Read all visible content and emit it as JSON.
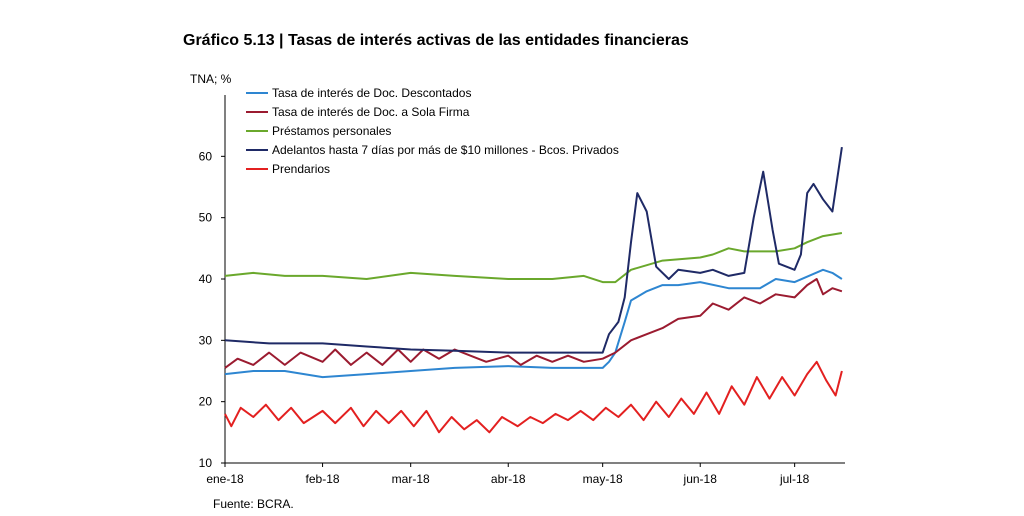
{
  "title": "Gráfico 5.13 | Tasas de interés activas de las entidades financieras",
  "unit_label": "TNA; %",
  "source": "Fuente: BCRA.",
  "chart_data": {
    "type": "line",
    "title": "Gráfico 5.13 | Tasas de interés activas de las entidades financieras",
    "xlabel": "",
    "ylabel": "TNA; %",
    "ylim": [
      10,
      70
    ],
    "yticks": [
      10,
      20,
      30,
      40,
      50,
      60
    ],
    "xticks": [
      "ene-18",
      "feb-18",
      "mar-18",
      "abr-18",
      "may-18",
      "jun-18",
      "jul-18"
    ],
    "x_range": [
      "2018-01-01",
      "2018-07-17"
    ],
    "grid": false,
    "legend_position": "top-left",
    "series": [
      {
        "name": "Tasa de interés de Doc. Descontados",
        "color": "#2e86d1",
        "points": [
          [
            "2018-01-01",
            24.5
          ],
          [
            "2018-01-10",
            25.0
          ],
          [
            "2018-01-20",
            25.0
          ],
          [
            "2018-02-01",
            24.0
          ],
          [
            "2018-02-15",
            24.5
          ],
          [
            "2018-03-01",
            25.0
          ],
          [
            "2018-03-15",
            25.5
          ],
          [
            "2018-04-01",
            25.8
          ],
          [
            "2018-04-15",
            25.5
          ],
          [
            "2018-05-01",
            25.5
          ],
          [
            "2018-05-03",
            26.5
          ],
          [
            "2018-05-05",
            28.0
          ],
          [
            "2018-05-08",
            33.0
          ],
          [
            "2018-05-10",
            36.5
          ],
          [
            "2018-05-15",
            38.0
          ],
          [
            "2018-05-20",
            39.0
          ],
          [
            "2018-05-25",
            39.0
          ],
          [
            "2018-06-01",
            39.5
          ],
          [
            "2018-06-10",
            38.5
          ],
          [
            "2018-06-20",
            38.5
          ],
          [
            "2018-06-25",
            40.0
          ],
          [
            "2018-07-01",
            39.5
          ],
          [
            "2018-07-10",
            41.5
          ],
          [
            "2018-07-13",
            41.0
          ],
          [
            "2018-07-16",
            40.0
          ]
        ]
      },
      {
        "name": "Tasa de interés de Doc. a Sola Firma",
        "color": "#9b1b30",
        "points": [
          [
            "2018-01-01",
            25.5
          ],
          [
            "2018-01-05",
            27.0
          ],
          [
            "2018-01-10",
            26.0
          ],
          [
            "2018-01-15",
            28.0
          ],
          [
            "2018-01-20",
            26.0
          ],
          [
            "2018-01-25",
            28.0
          ],
          [
            "2018-02-01",
            26.5
          ],
          [
            "2018-02-05",
            28.5
          ],
          [
            "2018-02-10",
            26.0
          ],
          [
            "2018-02-15",
            28.0
          ],
          [
            "2018-02-20",
            26.0
          ],
          [
            "2018-02-25",
            28.5
          ],
          [
            "2018-03-01",
            26.5
          ],
          [
            "2018-03-05",
            28.5
          ],
          [
            "2018-03-10",
            27.0
          ],
          [
            "2018-03-15",
            28.5
          ],
          [
            "2018-03-20",
            27.5
          ],
          [
            "2018-03-25",
            26.5
          ],
          [
            "2018-04-01",
            27.5
          ],
          [
            "2018-04-05",
            26.0
          ],
          [
            "2018-04-10",
            27.5
          ],
          [
            "2018-04-15",
            26.5
          ],
          [
            "2018-04-20",
            27.5
          ],
          [
            "2018-04-25",
            26.5
          ],
          [
            "2018-05-01",
            27.0
          ],
          [
            "2018-05-05",
            28.0
          ],
          [
            "2018-05-10",
            30.0
          ],
          [
            "2018-05-15",
            31.0
          ],
          [
            "2018-05-20",
            32.0
          ],
          [
            "2018-05-25",
            33.5
          ],
          [
            "2018-06-01",
            34.0
          ],
          [
            "2018-06-05",
            36.0
          ],
          [
            "2018-06-10",
            35.0
          ],
          [
            "2018-06-15",
            37.0
          ],
          [
            "2018-06-20",
            36.0
          ],
          [
            "2018-06-25",
            37.5
          ],
          [
            "2018-07-01",
            37.0
          ],
          [
            "2018-07-05",
            39.0
          ],
          [
            "2018-07-08",
            40.0
          ],
          [
            "2018-07-10",
            37.5
          ],
          [
            "2018-07-13",
            38.5
          ],
          [
            "2018-07-16",
            38.0
          ]
        ]
      },
      {
        "name": "Préstamos personales",
        "color": "#6aa82c",
        "points": [
          [
            "2018-01-01",
            40.5
          ],
          [
            "2018-01-10",
            41.0
          ],
          [
            "2018-01-20",
            40.5
          ],
          [
            "2018-02-01",
            40.5
          ],
          [
            "2018-02-15",
            40.0
          ],
          [
            "2018-03-01",
            41.0
          ],
          [
            "2018-03-15",
            40.5
          ],
          [
            "2018-04-01",
            40.0
          ],
          [
            "2018-04-15",
            40.0
          ],
          [
            "2018-04-25",
            40.5
          ],
          [
            "2018-05-01",
            39.5
          ],
          [
            "2018-05-05",
            39.5
          ],
          [
            "2018-05-10",
            41.5
          ],
          [
            "2018-05-20",
            43.0
          ],
          [
            "2018-06-01",
            43.5
          ],
          [
            "2018-06-05",
            44.0
          ],
          [
            "2018-06-10",
            45.0
          ],
          [
            "2018-06-15",
            44.5
          ],
          [
            "2018-06-25",
            44.5
          ],
          [
            "2018-07-01",
            45.0
          ],
          [
            "2018-07-05",
            46.0
          ],
          [
            "2018-07-10",
            47.0
          ],
          [
            "2018-07-16",
            47.5
          ]
        ]
      },
      {
        "name": "Adelantos hasta 7 días por más de $10 millones - Bcos. Privados",
        "color": "#1f2a66",
        "points": [
          [
            "2018-01-01",
            30.0
          ],
          [
            "2018-01-15",
            29.5
          ],
          [
            "2018-02-01",
            29.5
          ],
          [
            "2018-02-15",
            29.0
          ],
          [
            "2018-03-01",
            28.5
          ],
          [
            "2018-03-15",
            28.3
          ],
          [
            "2018-04-01",
            28.0
          ],
          [
            "2018-04-15",
            28.0
          ],
          [
            "2018-05-01",
            28.0
          ],
          [
            "2018-05-03",
            31.0
          ],
          [
            "2018-05-06",
            33.0
          ],
          [
            "2018-05-08",
            37.0
          ],
          [
            "2018-05-10",
            46.0
          ],
          [
            "2018-05-12",
            54.0
          ],
          [
            "2018-05-15",
            51.0
          ],
          [
            "2018-05-18",
            42.0
          ],
          [
            "2018-05-22",
            40.0
          ],
          [
            "2018-05-25",
            41.5
          ],
          [
            "2018-06-01",
            41.0
          ],
          [
            "2018-06-05",
            41.5
          ],
          [
            "2018-06-10",
            40.5
          ],
          [
            "2018-06-15",
            41.0
          ],
          [
            "2018-06-18",
            50.0
          ],
          [
            "2018-06-21",
            57.5
          ],
          [
            "2018-06-24",
            48.0
          ],
          [
            "2018-06-26",
            42.5
          ],
          [
            "2018-07-01",
            41.5
          ],
          [
            "2018-07-03",
            44.0
          ],
          [
            "2018-07-05",
            54.0
          ],
          [
            "2018-07-07",
            55.5
          ],
          [
            "2018-07-10",
            53.0
          ],
          [
            "2018-07-13",
            51.0
          ],
          [
            "2018-07-16",
            61.5
          ]
        ]
      },
      {
        "name": "Prendarios",
        "color": "#e32020",
        "points": [
          [
            "2018-01-01",
            18.0
          ],
          [
            "2018-01-03",
            16.0
          ],
          [
            "2018-01-06",
            19.0
          ],
          [
            "2018-01-10",
            17.5
          ],
          [
            "2018-01-14",
            19.5
          ],
          [
            "2018-01-18",
            17.0
          ],
          [
            "2018-01-22",
            19.0
          ],
          [
            "2018-01-26",
            16.5
          ],
          [
            "2018-02-01",
            18.5
          ],
          [
            "2018-02-05",
            16.5
          ],
          [
            "2018-02-10",
            19.0
          ],
          [
            "2018-02-14",
            16.0
          ],
          [
            "2018-02-18",
            18.5
          ],
          [
            "2018-02-22",
            16.5
          ],
          [
            "2018-02-26",
            18.5
          ],
          [
            "2018-03-02",
            16.0
          ],
          [
            "2018-03-06",
            18.5
          ],
          [
            "2018-03-10",
            15.0
          ],
          [
            "2018-03-14",
            17.5
          ],
          [
            "2018-03-18",
            15.5
          ],
          [
            "2018-03-22",
            17.0
          ],
          [
            "2018-03-26",
            15.0
          ],
          [
            "2018-03-30",
            17.5
          ],
          [
            "2018-04-04",
            16.0
          ],
          [
            "2018-04-08",
            17.5
          ],
          [
            "2018-04-12",
            16.5
          ],
          [
            "2018-04-16",
            18.0
          ],
          [
            "2018-04-20",
            17.0
          ],
          [
            "2018-04-24",
            18.5
          ],
          [
            "2018-04-28",
            17.0
          ],
          [
            "2018-05-02",
            19.0
          ],
          [
            "2018-05-06",
            17.5
          ],
          [
            "2018-05-10",
            19.5
          ],
          [
            "2018-05-14",
            17.0
          ],
          [
            "2018-05-18",
            20.0
          ],
          [
            "2018-05-22",
            17.5
          ],
          [
            "2018-05-26",
            20.5
          ],
          [
            "2018-05-30",
            18.0
          ],
          [
            "2018-06-03",
            21.5
          ],
          [
            "2018-06-07",
            18.0
          ],
          [
            "2018-06-11",
            22.5
          ],
          [
            "2018-06-15",
            19.5
          ],
          [
            "2018-06-19",
            24.0
          ],
          [
            "2018-06-23",
            20.5
          ],
          [
            "2018-06-27",
            24.0
          ],
          [
            "2018-07-01",
            21.0
          ],
          [
            "2018-07-05",
            24.5
          ],
          [
            "2018-07-08",
            26.5
          ],
          [
            "2018-07-11",
            23.5
          ],
          [
            "2018-07-14",
            21.0
          ],
          [
            "2018-07-16",
            25.0
          ]
        ]
      }
    ]
  }
}
